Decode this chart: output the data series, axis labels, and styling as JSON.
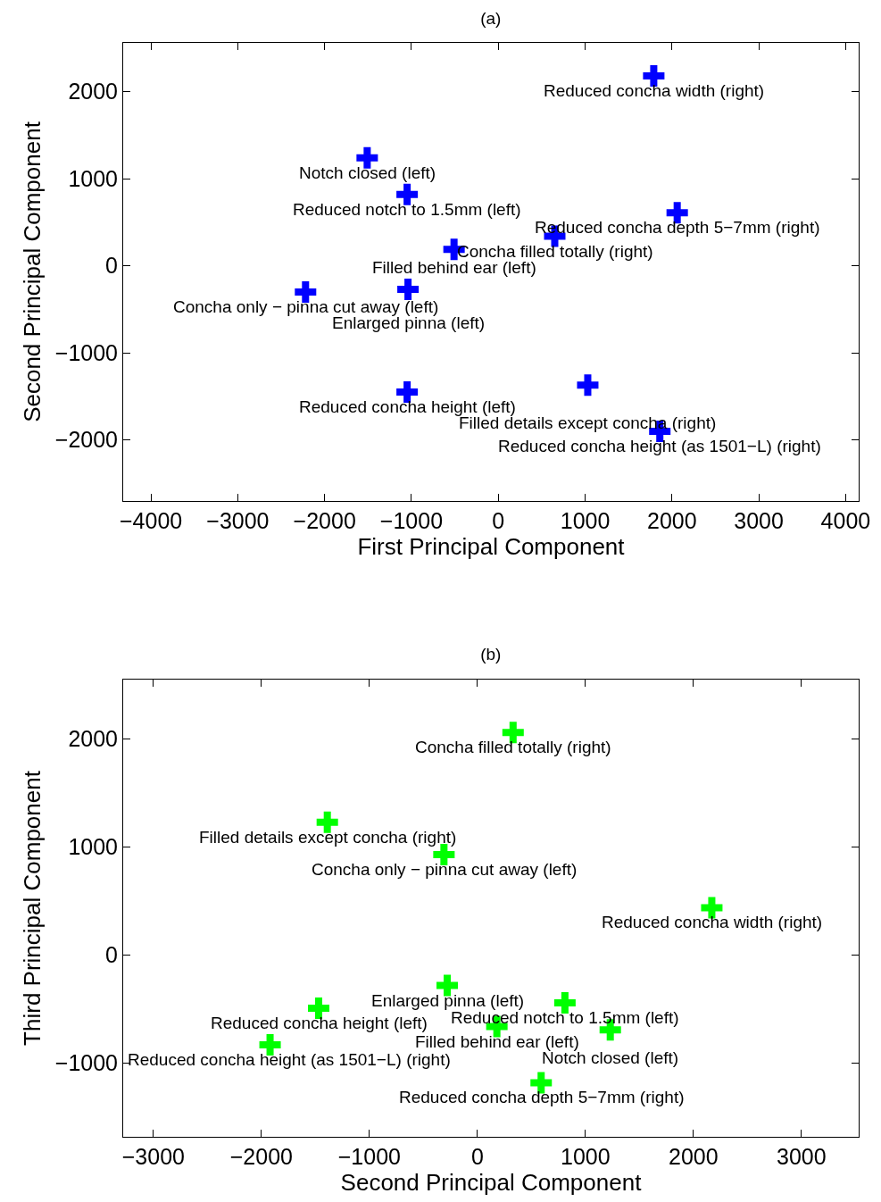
{
  "chart_data": [
    {
      "type": "scatter",
      "title": "(a)",
      "xlabel": "First Principal Component",
      "ylabel": "Second Principal Component",
      "marker": "cross",
      "x": [
        1790,
        -1510,
        -1050,
        2060,
        650,
        -510,
        -2220,
        -1040,
        -1050,
        1030,
        1860
      ],
      "series": [
        {
          "color": "#0000ff",
          "values": [
            2180,
            1240,
            820,
            610,
            340,
            190,
            -300,
            -270,
            -1450,
            -1370,
            -1900
          ]
        }
      ],
      "annotations": [
        {
          "text": "Reduced concha width (right)",
          "x": 1790,
          "y": 2180
        },
        {
          "text": "Notch closed (left)",
          "x": -1510,
          "y": 1240
        },
        {
          "text": "Reduced notch to 1.5mm (left)",
          "x": -1050,
          "y": 820
        },
        {
          "text": "Reduced concha depth 5−7mm (right)",
          "x": 2060,
          "y": 610
        },
        {
          "text": "Concha filled totally (right)",
          "x": 650,
          "y": 340
        },
        {
          "text": "Filled behind ear (left)",
          "x": -510,
          "y": 190
        },
        {
          "text": "Concha only − pinna cut away (left)",
          "x": -2220,
          "y": -300
        },
        {
          "text": "Enlarged pinna (left)",
          "x": -1040,
          "y": -270
        },
        {
          "text": "Reduced concha height (left)",
          "x": -1050,
          "y": -1450
        },
        {
          "text": "Filled details except concha (right)",
          "x": 1030,
          "y": -1370
        },
        {
          "text": "Reduced concha height (as 1501−L) (right)",
          "x": 1860,
          "y": -1900
        }
      ],
      "xlim": [
        -4320,
        4150
      ],
      "ylim": [
        -2700,
        2560
      ],
      "xticks": [
        -4000,
        -3000,
        -2000,
        -1000,
        0,
        1000,
        2000,
        3000,
        4000
      ],
      "yticks": [
        -2000,
        -1000,
        0,
        1000,
        2000
      ]
    },
    {
      "type": "scatter",
      "title": "(b)",
      "xlabel": "Second Principal Component",
      "ylabel": "Third Principal Component",
      "marker": "cross",
      "x": [
        330,
        -1390,
        -310,
        2170,
        -280,
        -1470,
        810,
        180,
        1230,
        -1920,
        590
      ],
      "series": [
        {
          "color": "#00ff00",
          "values": [
            2060,
            1230,
            930,
            440,
            -280,
            -490,
            -440,
            -660,
            -690,
            -830,
            -1180
          ]
        }
      ],
      "annotations": [
        {
          "text": "Concha filled totally (right)",
          "x": 330,
          "y": 2060
        },
        {
          "text": "Filled details except concha (right)",
          "x": -1390,
          "y": 1230
        },
        {
          "text": "Concha only − pinna cut away (left)",
          "x": -310,
          "y": 930
        },
        {
          "text": "Reduced concha width (right)",
          "x": 2170,
          "y": 440
        },
        {
          "text": "Enlarged pinna (left)",
          "x": -280,
          "y": -280
        },
        {
          "text": "Reduced concha height (left)",
          "x": -1470,
          "y": -490
        },
        {
          "text": "Reduced notch to 1.5mm (left)",
          "x": 810,
          "y": -440
        },
        {
          "text": "Filled behind ear (left)",
          "x": 180,
          "y": -660
        },
        {
          "text": "Notch closed (left)",
          "x": 1230,
          "y": -690
        },
        {
          "text": "Reduced concha height (as 1501−L) (right)",
          "x": -1920,
          "y": -830
        },
        {
          "text": "Reduced concha depth 5−7mm (right)",
          "x": 590,
          "y": -1180
        }
      ],
      "xlim": [
        -3280,
        3530
      ],
      "ylim": [
        -1680,
        2550
      ],
      "xticks": [
        -3000,
        -2000,
        -1000,
        0,
        1000,
        2000,
        3000
      ],
      "yticks": [
        -1000,
        0,
        1000,
        2000
      ]
    }
  ]
}
